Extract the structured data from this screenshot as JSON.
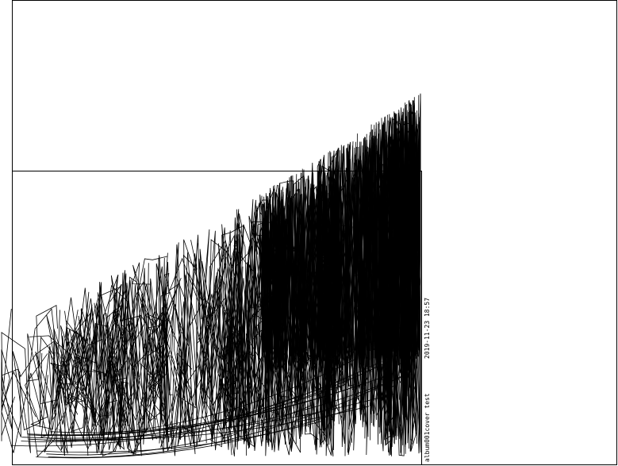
{
  "plot": {
    "stamp_label": "album001cover test",
    "stamp_timestamp": "2019-11-23 18:57",
    "colors": {
      "background": "#ffffff",
      "ink": "#000000"
    }
  }
}
